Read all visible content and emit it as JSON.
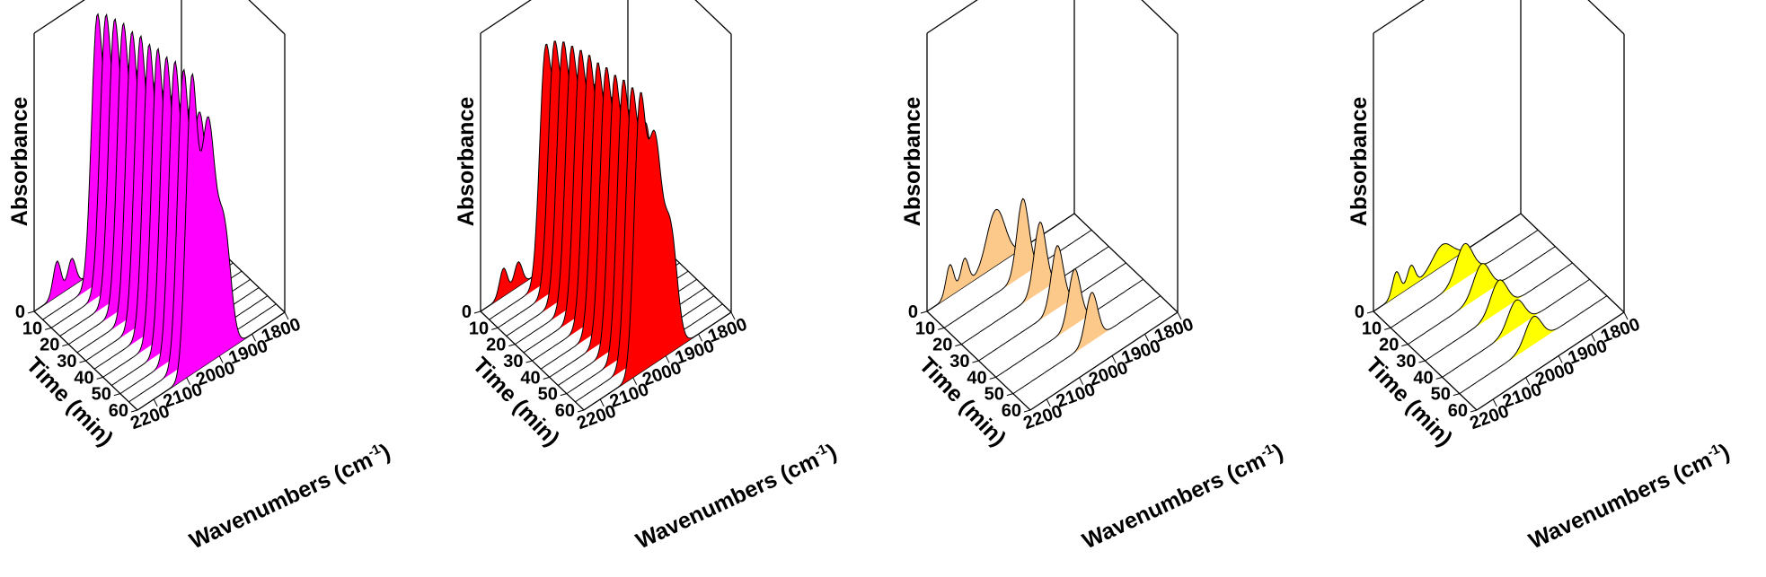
{
  "chart_data": [
    {
      "type": "3d-waterfall",
      "title": "",
      "zlabel": "Absorbance",
      "ylabel": "Time (min)",
      "xlabel": "Wavenumbers (cm",
      "xlabel_sup": "-1",
      "xlabel_close": ")",
      "x_ticks": [
        "2200",
        "2100",
        "2000",
        "1900",
        "1800"
      ],
      "x_tick_values": [
        2200,
        2100,
        2000,
        1900,
        1800
      ],
      "x_range": [
        2250,
        1800
      ],
      "time_ticks": [
        "0",
        "10",
        "20",
        "30",
        "40",
        "50",
        "60"
      ],
      "time_tick_values": [
        0,
        10,
        20,
        30,
        40,
        50,
        60
      ],
      "color": "#ff00ff",
      "series": [
        {
          "time": 0,
          "bands": [
            {
              "center": 2180,
              "height": 0.1,
              "width": 12
            },
            {
              "center": 2135,
              "height": 0.08,
              "width": 12
            }
          ]
        },
        {
          "time": 5,
          "bands": [
            {
              "center": 2085,
              "height": 0.72,
              "width": 17
            },
            {
              "center": 2035,
              "height": 0.6,
              "width": 22
            },
            {
              "center": 1985,
              "height": 0.3,
              "width": 20
            }
          ]
        },
        {
          "time": 10,
          "bands": [
            {
              "center": 2085,
              "height": 0.74,
              "width": 17
            },
            {
              "center": 2035,
              "height": 0.62,
              "width": 22
            },
            {
              "center": 1985,
              "height": 0.31,
              "width": 20
            }
          ]
        },
        {
          "time": 15,
          "bands": [
            {
              "center": 2085,
              "height": 0.75,
              "width": 17
            },
            {
              "center": 2035,
              "height": 0.63,
              "width": 22
            },
            {
              "center": 1985,
              "height": 0.32,
              "width": 20
            }
          ]
        },
        {
          "time": 20,
          "bands": [
            {
              "center": 2085,
              "height": 0.76,
              "width": 17
            },
            {
              "center": 2035,
              "height": 0.64,
              "width": 22
            },
            {
              "center": 1985,
              "height": 0.32,
              "width": 20
            }
          ]
        },
        {
          "time": 25,
          "bands": [
            {
              "center": 2085,
              "height": 0.76,
              "width": 17
            },
            {
              "center": 2035,
              "height": 0.64,
              "width": 22
            },
            {
              "center": 1985,
              "height": 0.32,
              "width": 20
            }
          ]
        },
        {
          "time": 30,
          "bands": [
            {
              "center": 2085,
              "height": 0.77,
              "width": 17
            },
            {
              "center": 2035,
              "height": 0.65,
              "width": 22
            },
            {
              "center": 1985,
              "height": 0.33,
              "width": 20
            }
          ]
        },
        {
          "time": 35,
          "bands": [
            {
              "center": 2085,
              "height": 0.77,
              "width": 17
            },
            {
              "center": 2035,
              "height": 0.65,
              "width": 22
            },
            {
              "center": 1985,
              "height": 0.33,
              "width": 20
            }
          ]
        },
        {
          "time": 40,
          "bands": [
            {
              "center": 2085,
              "height": 0.78,
              "width": 17
            },
            {
              "center": 2035,
              "height": 0.66,
              "width": 22
            },
            {
              "center": 1985,
              "height": 0.33,
              "width": 20
            }
          ]
        },
        {
          "time": 45,
          "bands": [
            {
              "center": 2085,
              "height": 0.78,
              "width": 17
            },
            {
              "center": 2035,
              "height": 0.66,
              "width": 22
            },
            {
              "center": 1985,
              "height": 0.33,
              "width": 20
            }
          ]
        },
        {
          "time": 50,
          "bands": [
            {
              "center": 2085,
              "height": 0.79,
              "width": 17
            },
            {
              "center": 2035,
              "height": 0.67,
              "width": 22
            },
            {
              "center": 1985,
              "height": 0.34,
              "width": 20
            }
          ]
        },
        {
          "time": 55,
          "bands": [
            {
              "center": 2085,
              "height": 0.79,
              "width": 17
            },
            {
              "center": 2035,
              "height": 0.67,
              "width": 22
            },
            {
              "center": 1985,
              "height": 0.34,
              "width": 20
            }
          ]
        },
        {
          "time": 60,
          "bands": [
            {
              "center": 2085,
              "height": 0.8,
              "width": 17
            },
            {
              "center": 2035,
              "height": 0.68,
              "width": 22
            },
            {
              "center": 1985,
              "height": 0.34,
              "width": 20
            }
          ]
        }
      ]
    },
    {
      "type": "3d-waterfall",
      "title": "",
      "zlabel": "Absorbance",
      "ylabel": "Time (min)",
      "xlabel": "Wavenumbers (cm",
      "xlabel_sup": "-1",
      "xlabel_close": ")",
      "x_ticks": [
        "2200",
        "2100",
        "2000",
        "1900",
        "1800"
      ],
      "x_tick_values": [
        2200,
        2100,
        2000,
        1900,
        1800
      ],
      "x_range": [
        2250,
        1800
      ],
      "time_ticks": [
        "0",
        "10",
        "20",
        "30",
        "40",
        "50",
        "60"
      ],
      "time_tick_values": [
        0,
        10,
        20,
        30,
        40,
        50,
        60
      ],
      "color": "#ff0000",
      "series": [
        {
          "time": 0,
          "bands": [
            {
              "center": 2180,
              "height": 0.08,
              "width": 12
            },
            {
              "center": 2135,
              "height": 0.07,
              "width": 12
            }
          ]
        },
        {
          "time": 5,
          "bands": [
            {
              "center": 2080,
              "height": 0.6,
              "width": 17
            },
            {
              "center": 2035,
              "height": 0.55,
              "width": 22
            },
            {
              "center": 1985,
              "height": 0.28,
              "width": 20
            }
          ]
        },
        {
          "time": 10,
          "bands": [
            {
              "center": 2080,
              "height": 0.63,
              "width": 17
            },
            {
              "center": 2035,
              "height": 0.57,
              "width": 22
            },
            {
              "center": 1985,
              "height": 0.29,
              "width": 20
            }
          ]
        },
        {
          "time": 15,
          "bands": [
            {
              "center": 2080,
              "height": 0.65,
              "width": 17
            },
            {
              "center": 2035,
              "height": 0.58,
              "width": 22
            },
            {
              "center": 1985,
              "height": 0.3,
              "width": 20
            }
          ]
        },
        {
          "time": 20,
          "bands": [
            {
              "center": 2080,
              "height": 0.66,
              "width": 17
            },
            {
              "center": 2035,
              "height": 0.59,
              "width": 22
            },
            {
              "center": 1985,
              "height": 0.3,
              "width": 20
            }
          ]
        },
        {
          "time": 25,
          "bands": [
            {
              "center": 2080,
              "height": 0.67,
              "width": 17
            },
            {
              "center": 2035,
              "height": 0.6,
              "width": 22
            },
            {
              "center": 1985,
              "height": 0.31,
              "width": 20
            }
          ]
        },
        {
          "time": 30,
          "bands": [
            {
              "center": 2080,
              "height": 0.68,
              "width": 17
            },
            {
              "center": 2035,
              "height": 0.6,
              "width": 22
            },
            {
              "center": 1985,
              "height": 0.31,
              "width": 20
            }
          ]
        },
        {
          "time": 35,
          "bands": [
            {
              "center": 2080,
              "height": 0.68,
              "width": 17
            },
            {
              "center": 2035,
              "height": 0.61,
              "width": 22
            },
            {
              "center": 1985,
              "height": 0.31,
              "width": 20
            }
          ]
        },
        {
          "time": 40,
          "bands": [
            {
              "center": 2080,
              "height": 0.69,
              "width": 17
            },
            {
              "center": 2035,
              "height": 0.61,
              "width": 22
            },
            {
              "center": 1985,
              "height": 0.32,
              "width": 20
            }
          ]
        },
        {
          "time": 45,
          "bands": [
            {
              "center": 2080,
              "height": 0.69,
              "width": 17
            },
            {
              "center": 2035,
              "height": 0.62,
              "width": 22
            },
            {
              "center": 1985,
              "height": 0.32,
              "width": 20
            }
          ]
        },
        {
          "time": 50,
          "bands": [
            {
              "center": 2080,
              "height": 0.7,
              "width": 17
            },
            {
              "center": 2035,
              "height": 0.62,
              "width": 22
            },
            {
              "center": 1985,
              "height": 0.32,
              "width": 20
            }
          ]
        },
        {
          "time": 55,
          "bands": [
            {
              "center": 2080,
              "height": 0.7,
              "width": 17
            },
            {
              "center": 2035,
              "height": 0.63,
              "width": 22
            },
            {
              "center": 1985,
              "height": 0.33,
              "width": 20
            }
          ]
        },
        {
          "time": 60,
          "bands": [
            {
              "center": 2080,
              "height": 0.71,
              "width": 17
            },
            {
              "center": 2035,
              "height": 0.63,
              "width": 22
            },
            {
              "center": 1985,
              "height": 0.33,
              "width": 20
            }
          ]
        }
      ]
    },
    {
      "type": "3d-waterfall",
      "title": "",
      "zlabel": "Absorbance",
      "ylabel": "Time (min)",
      "xlabel": "Wavenumbers (cm",
      "xlabel_sup": "-1",
      "xlabel_close": ")",
      "x_ticks": [
        "2200",
        "2100",
        "2000",
        "1900",
        "1800"
      ],
      "x_tick_values": [
        2200,
        2100,
        2000,
        1900,
        1800
      ],
      "x_range": [
        2250,
        1800
      ],
      "time_ticks": [
        "0",
        "10",
        "20",
        "30",
        "40",
        "50",
        "60"
      ],
      "time_tick_values": [
        0,
        10,
        20,
        30,
        40,
        50,
        60
      ],
      "color": "#fcc98a",
      "series": [
        {
          "time": 0,
          "bands": [
            {
              "center": 2180,
              "height": 0.09,
              "width": 12
            },
            {
              "center": 2135,
              "height": 0.08,
              "width": 12
            },
            {
              "center": 2040,
              "height": 0.16,
              "width": 28
            }
          ]
        },
        {
          "time": 10,
          "bands": [
            {
              "center": 2010,
              "height": 0.22,
              "width": 18
            }
          ]
        },
        {
          "time": 20,
          "bands": [
            {
              "center": 2010,
              "height": 0.2,
              "width": 18
            }
          ]
        },
        {
          "time": 30,
          "bands": [
            {
              "center": 2010,
              "height": 0.18,
              "width": 18
            }
          ]
        },
        {
          "time": 40,
          "bands": [
            {
              "center": 2010,
              "height": 0.16,
              "width": 18
            }
          ]
        },
        {
          "time": 50,
          "bands": [
            {
              "center": 2010,
              "height": 0.14,
              "width": 18
            }
          ]
        }
      ]
    },
    {
      "type": "3d-waterfall",
      "title": "",
      "zlabel": "Absorbance",
      "ylabel": "Time (min)",
      "xlabel": "Wavenumbers (cm",
      "xlabel_sup": "-1",
      "xlabel_close": ")",
      "x_ticks": [
        "2200",
        "2100",
        "2000",
        "1900",
        "1800"
      ],
      "x_tick_values": [
        2200,
        2100,
        2000,
        1900,
        1800
      ],
      "x_range": [
        2250,
        1800
      ],
      "time_ticks": [
        "0",
        "10",
        "20",
        "30",
        "40",
        "50",
        "60"
      ],
      "time_tick_values": [
        0,
        10,
        20,
        30,
        40,
        50,
        60
      ],
      "color": "#ffff00",
      "series": [
        {
          "time": 0,
          "bands": [
            {
              "center": 2180,
              "height": 0.07,
              "width": 12
            },
            {
              "center": 2135,
              "height": 0.06,
              "width": 12
            },
            {
              "center": 2040,
              "height": 0.06,
              "width": 30
            }
          ]
        },
        {
          "time": 10,
          "bands": [
            {
              "center": 2025,
              "height": 0.1,
              "width": 25
            }
          ]
        },
        {
          "time": 20,
          "bands": [
            {
              "center": 2025,
              "height": 0.09,
              "width": 25
            }
          ]
        },
        {
          "time": 30,
          "bands": [
            {
              "center": 2025,
              "height": 0.09,
              "width": 25
            }
          ]
        },
        {
          "time": 40,
          "bands": [
            {
              "center": 2025,
              "height": 0.08,
              "width": 25
            }
          ]
        },
        {
          "time": 50,
          "bands": [
            {
              "center": 2025,
              "height": 0.08,
              "width": 25
            }
          ]
        }
      ]
    }
  ]
}
